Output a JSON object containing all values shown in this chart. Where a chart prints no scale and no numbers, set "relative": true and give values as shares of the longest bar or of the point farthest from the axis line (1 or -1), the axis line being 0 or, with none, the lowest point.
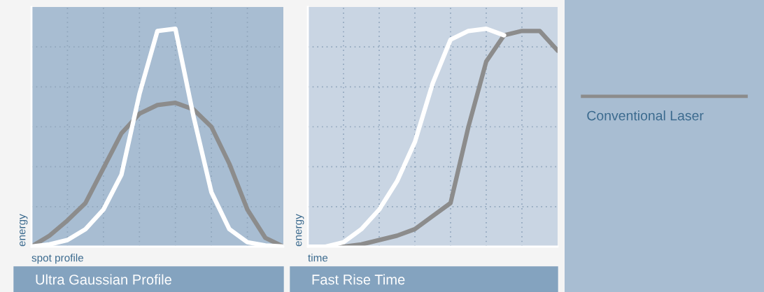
{
  "chart_data": [
    {
      "type": "line",
      "title": "Ultra Gaussian Profile",
      "xlabel": "spot profile",
      "ylabel": "energy",
      "relative": true,
      "grid": true,
      "legend": false,
      "categories": [
        null,
        null,
        null,
        null,
        null,
        null,
        null,
        null,
        null,
        null,
        null,
        null,
        null,
        null,
        null
      ],
      "series": [
        {
          "color": "#8c8c8c",
          "values": [
            0,
            0.05,
            0.12,
            0.2,
            0.36,
            0.52,
            0.61,
            0.65,
            0.66,
            0.63,
            0.55,
            0.38,
            0.17,
            0.04,
            0
          ]
        },
        {
          "color": "#ffffff",
          "values": [
            0,
            0.01,
            0.03,
            0.08,
            0.17,
            0.33,
            0.7,
            0.99,
            1,
            0.6,
            0.25,
            0.08,
            0.02,
            0.005,
            0
          ]
        }
      ]
    },
    {
      "type": "line",
      "title": "Fast Rise Time",
      "xlabel": "time",
      "ylabel": "energy",
      "relative": true,
      "grid": true,
      "legend": "right",
      "categories": [
        null,
        null,
        null,
        null,
        null,
        null,
        null,
        null,
        null,
        null,
        null,
        null,
        null,
        null,
        null
      ],
      "series": [
        {
          "name": "Conventional Laser",
          "color": "#8c8c8c",
          "values": [
            0,
            0,
            0,
            0.01,
            0.03,
            0.05,
            0.08,
            0.14,
            0.2,
            0.55,
            0.85,
            0.97,
            0.99,
            0.99,
            0.9
          ]
        },
        {
          "color": "#ffffff",
          "values": [
            0,
            0,
            0.02,
            0.08,
            0.17,
            0.3,
            0.48,
            0.75,
            0.95,
            0.99,
            1,
            0.97,
            null,
            null,
            null
          ]
        }
      ]
    }
  ]
}
